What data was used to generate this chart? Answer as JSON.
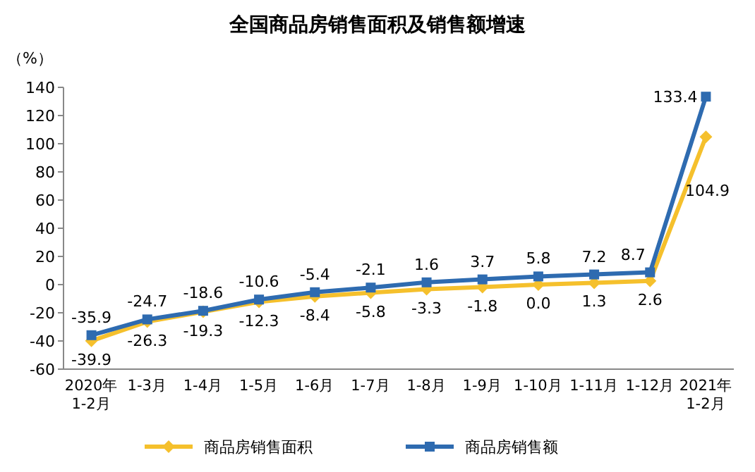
{
  "chart_data": {
    "type": "line",
    "title": "全国商品房销售面积及销售额增速",
    "ylabel": "（%）",
    "categories": [
      "2020年\n1-2月",
      "1-3月",
      "1-4月",
      "1-5月",
      "1-6月",
      "1-7月",
      "1-8月",
      "1-9月",
      "1-10月",
      "1-11月",
      "1-12月",
      "2021年\n1-2月"
    ],
    "series": [
      {
        "name": "商品房销售面积",
        "color": "#f5c02c",
        "marker": "diamond",
        "values": [
          -39.9,
          -26.3,
          -19.3,
          -12.3,
          -8.4,
          -5.8,
          -3.3,
          -1.8,
          0.0,
          1.3,
          2.6,
          104.9
        ],
        "value_labels": [
          "-39.9",
          "-26.3",
          "-19.3",
          "-12.3",
          "-8.4",
          "-5.8",
          "-3.3",
          "-1.8",
          "0.0",
          "1.3",
          "2.6",
          "104.9"
        ]
      },
      {
        "name": "商品房销售额",
        "color": "#2e6bb0",
        "marker": "square",
        "values": [
          -35.9,
          -24.7,
          -18.6,
          -10.6,
          -5.4,
          -2.1,
          1.6,
          3.7,
          5.8,
          7.2,
          8.7,
          133.4
        ],
        "value_labels": [
          "-35.9",
          "-24.7",
          "-18.6",
          "-10.6",
          "-5.4",
          "-2.1",
          "1.6",
          "3.7",
          "5.8",
          "7.2",
          "8.7",
          "133.4"
        ]
      }
    ],
    "ylim": [
      -60,
      140
    ],
    "yticks": [
      -60,
      -40,
      -20,
      0,
      20,
      40,
      60,
      80,
      100,
      120,
      140
    ],
    "grid": false,
    "legend": "bottom"
  }
}
